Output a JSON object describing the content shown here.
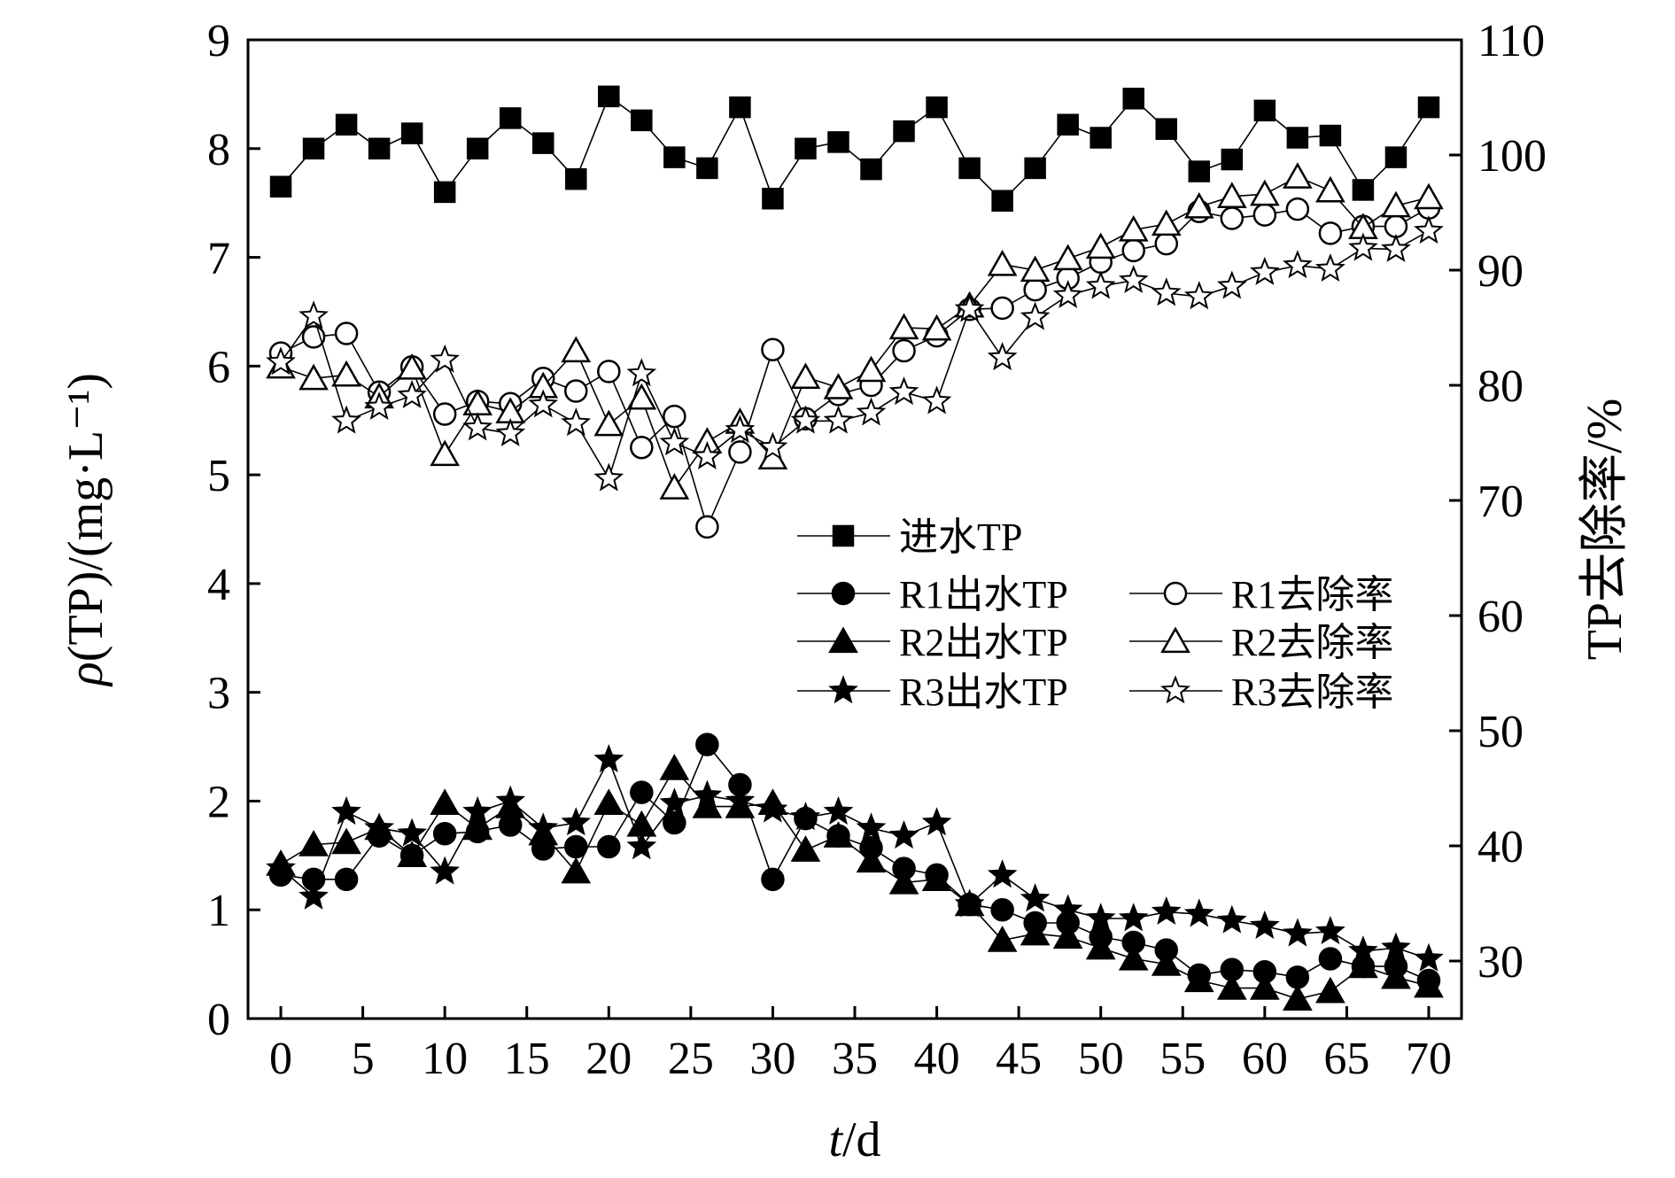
{
  "chart_data": {
    "type": "line",
    "xlabel": "t/d",
    "ylabel": "ρ(TP)/(mg·L⁻¹)",
    "y2label": "TP去除率/%",
    "xlim": [
      -2,
      72
    ],
    "ylim": [
      0,
      9
    ],
    "y2lim": [
      25,
      110
    ],
    "xticks": [
      "0",
      "5",
      "10",
      "15",
      "20",
      "25",
      "30",
      "35",
      "40",
      "45",
      "50",
      "55",
      "60",
      "65",
      "70"
    ],
    "yticks": [
      "0",
      "1",
      "2",
      "3",
      "4",
      "5",
      "6",
      "7",
      "8",
      "9"
    ],
    "y2ticks": [
      "30",
      "40",
      "50",
      "60",
      "70",
      "80",
      "90",
      "100",
      "110"
    ],
    "grid": false,
    "legend_position": "center-right",
    "x": [
      0,
      2,
      4,
      6,
      8,
      10,
      12,
      14,
      16,
      18,
      20,
      22,
      24,
      26,
      28,
      30,
      32,
      34,
      36,
      38,
      40,
      42,
      44,
      46,
      48,
      50,
      52,
      54,
      56,
      58,
      60,
      62,
      64,
      66,
      68,
      70
    ],
    "series": [
      {
        "name": "进水TP",
        "axis": "left",
        "marker": "square-filled",
        "values": [
          7.65,
          8.0,
          8.22,
          8.0,
          8.14,
          7.6,
          8.0,
          8.28,
          8.05,
          7.72,
          8.48,
          8.26,
          7.92,
          7.82,
          8.38,
          7.54,
          8.0,
          8.06,
          7.81,
          8.16,
          8.38,
          7.82,
          7.52,
          7.82,
          8.22,
          8.1,
          8.46,
          8.18,
          7.79,
          7.9,
          8.35,
          8.1,
          8.12,
          7.62,
          7.92,
          8.38
        ]
      },
      {
        "name": "R1出水TP",
        "axis": "left",
        "marker": "circle-filled",
        "values": [
          1.32,
          1.28,
          1.28,
          1.68,
          1.5,
          1.7,
          1.72,
          1.78,
          1.56,
          1.58,
          1.58,
          2.08,
          1.8,
          2.52,
          2.15,
          1.28,
          1.84,
          1.68,
          1.57,
          1.38,
          1.32,
          1.05,
          1.0,
          0.88,
          0.88,
          0.75,
          0.7,
          0.63,
          0.4,
          0.45,
          0.43,
          0.38,
          0.55,
          0.48,
          0.48,
          0.35
        ]
      },
      {
        "name": "R2出水TP",
        "axis": "left",
        "marker": "triangle-filled",
        "values": [
          1.42,
          1.6,
          1.62,
          1.75,
          1.5,
          1.98,
          1.75,
          1.95,
          1.7,
          1.35,
          1.98,
          1.78,
          2.3,
          1.95,
          1.95,
          1.98,
          1.55,
          1.68,
          1.45,
          1.25,
          1.28,
          1.05,
          0.72,
          0.78,
          0.75,
          0.65,
          0.55,
          0.5,
          0.35,
          0.28,
          0.28,
          0.18,
          0.25,
          0.48,
          0.38,
          0.3
        ]
      },
      {
        "name": "R3出水TP",
        "axis": "left",
        "marker": "star-filled",
        "values": [
          1.38,
          1.12,
          1.9,
          1.75,
          1.7,
          1.35,
          1.9,
          2.0,
          1.75,
          1.8,
          2.38,
          1.58,
          1.98,
          2.05,
          2.0,
          1.92,
          1.85,
          1.9,
          1.75,
          1.68,
          1.8,
          1.05,
          1.32,
          1.1,
          1.0,
          0.92,
          0.92,
          0.98,
          0.96,
          0.9,
          0.85,
          0.78,
          0.8,
          0.62,
          0.65,
          0.55
        ]
      },
      {
        "name": "R1去除率",
        "axis": "right",
        "marker": "circle-open",
        "values": [
          82.8,
          84.2,
          84.5,
          79.4,
          81.6,
          77.5,
          78.6,
          78.4,
          80.6,
          79.5,
          81.2,
          74.6,
          77.3,
          67.7,
          74.2,
          83.1,
          77.1,
          79.2,
          80.0,
          83.0,
          84.3,
          86.6,
          86.7,
          88.3,
          89.3,
          90.7,
          91.7,
          92.3,
          95.1,
          94.5,
          94.8,
          95.3,
          93.2,
          93.8,
          93.8,
          95.4
        ]
      },
      {
        "name": "R2去除率",
        "axis": "right",
        "marker": "triangle-open",
        "values": [
          81.6,
          80.6,
          80.9,
          79.0,
          81.5,
          74.0,
          78.4,
          77.7,
          79.9,
          83.0,
          76.6,
          78.9,
          71.1,
          75.1,
          76.8,
          73.7,
          80.7,
          79.8,
          81.3,
          85.0,
          84.9,
          86.9,
          90.5,
          90.0,
          91.0,
          92.0,
          93.5,
          94.0,
          95.5,
          96.4,
          96.6,
          98.1,
          96.9,
          93.7,
          95.6,
          96.3
        ]
      },
      {
        "name": "R3去除率",
        "axis": "right",
        "marker": "star-open",
        "values": [
          82.0,
          86.0,
          76.9,
          78.1,
          79.1,
          82.2,
          76.3,
          75.8,
          78.3,
          76.7,
          71.9,
          81.0,
          75.0,
          73.8,
          76.1,
          74.6,
          76.9,
          76.9,
          77.6,
          79.4,
          78.6,
          86.6,
          82.4,
          85.9,
          87.8,
          88.6,
          89.1,
          88.0,
          87.7,
          88.6,
          89.8,
          90.4,
          90.1,
          91.9,
          91.8,
          93.4
        ]
      }
    ]
  }
}
